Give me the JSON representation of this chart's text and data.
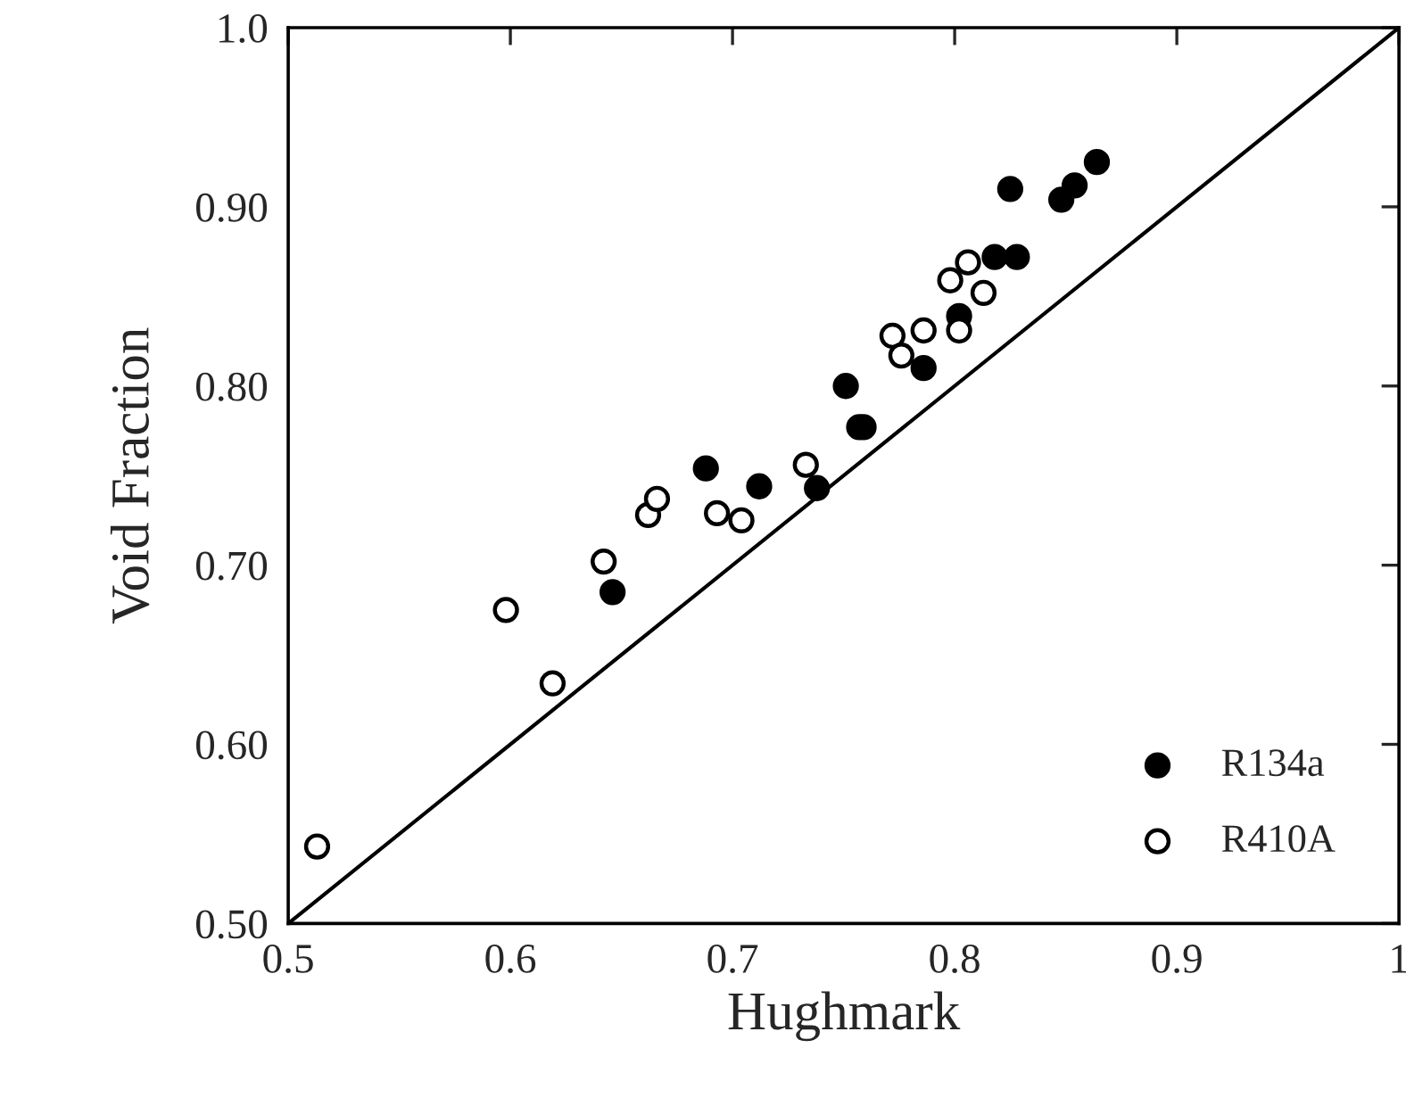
{
  "chart_data": {
    "type": "scatter",
    "xlabel": "Hughmark",
    "ylabel": "Void Fraction",
    "xlim": [
      0.5,
      1.0
    ],
    "ylim": [
      0.5,
      1.0
    ],
    "xticks": [
      {
        "value": 0.5,
        "label": "0.5"
      },
      {
        "value": 0.6,
        "label": "0.6"
      },
      {
        "value": 0.7,
        "label": "0.7"
      },
      {
        "value": 0.8,
        "label": "0.8"
      },
      {
        "value": 0.9,
        "label": "0.9"
      },
      {
        "value": 1.0,
        "label": "1"
      }
    ],
    "yticks": [
      {
        "value": 0.5,
        "label": "0.50"
      },
      {
        "value": 0.6,
        "label": "0.60"
      },
      {
        "value": 0.7,
        "label": "0.70"
      },
      {
        "value": 0.8,
        "label": "0.80"
      },
      {
        "value": 0.9,
        "label": "0.90"
      },
      {
        "value": 1.0,
        "label": "1.0"
      }
    ],
    "legend": "bottom right",
    "grid": false,
    "series": [
      {
        "name": "R134a",
        "marker": "circle",
        "color": "#000000",
        "x": [
          0.646,
          0.688,
          0.712,
          0.738,
          0.751,
          0.757,
          0.759,
          0.786,
          0.802,
          0.818,
          0.828,
          0.825,
          0.848,
          0.854,
          0.864
        ],
        "values": [
          0.685,
          0.754,
          0.744,
          0.743,
          0.8,
          0.777,
          0.777,
          0.81,
          0.839,
          0.872,
          0.872,
          0.91,
          0.904,
          0.912,
          0.925
        ]
      },
      {
        "name": "R410A",
        "marker": "circle",
        "color": "#ffffff",
        "x": [
          0.513,
          0.598,
          0.619,
          0.642,
          0.662,
          0.666,
          0.693,
          0.704,
          0.733,
          0.772,
          0.776,
          0.786,
          0.802,
          0.798,
          0.806,
          0.813
        ],
        "values": [
          0.543,
          0.675,
          0.634,
          0.702,
          0.728,
          0.737,
          0.729,
          0.725,
          0.756,
          0.828,
          0.817,
          0.831,
          0.831,
          0.859,
          0.869,
          0.852
        ]
      },
      {
        "type": "line",
        "line_style": "solid",
        "color": "#000000",
        "x": [
          0.5,
          1.0
        ],
        "values": [
          0.5,
          1.0
        ]
      }
    ]
  }
}
